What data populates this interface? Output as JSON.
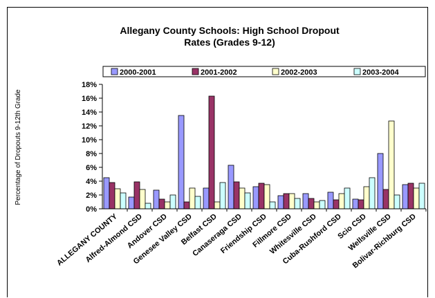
{
  "chart_data": {
    "type": "bar",
    "title_line1": "Allegany County Schools: High School Dropout",
    "title_line2": "Rates (Grades 9-12)",
    "ylabel": "Percentage of Dropouts 9-12th Grade",
    "xlabel": "",
    "ylim": [
      0,
      18
    ],
    "ytick_step": 2,
    "ytick_format": "percent",
    "grid": false,
    "legend_position": "top",
    "categories": [
      "ALLEGANY COUNTY",
      "Alfred-Almond CSD",
      "Andover CSD",
      "Genesee Valley CSD",
      "Belfast CSD",
      "Canaseraga CSD",
      "Friendship CSD",
      "Fillmore CSD",
      "Whitesville CSD",
      "Cuba-Rushford CSD",
      "Scio CSD",
      "Wellsville CSD",
      "Bolivar-Richburg CSD"
    ],
    "series": [
      {
        "name": "2000-2001",
        "color": "#9999ff",
        "values": [
          4.5,
          1.7,
          2.7,
          13.5,
          3.0,
          6.3,
          3.2,
          1.9,
          2.2,
          2.4,
          1.4,
          8.0,
          3.5
        ]
      },
      {
        "name": "2001-2002",
        "color": "#993366",
        "values": [
          3.8,
          3.9,
          1.4,
          1.0,
          16.3,
          3.9,
          3.7,
          2.2,
          1.5,
          1.3,
          1.3,
          2.8,
          3.7
        ]
      },
      {
        "name": "2002-2003",
        "color": "#ffffcc",
        "values": [
          2.9,
          2.8,
          1.0,
          3.0,
          1.0,
          3.0,
          3.5,
          2.2,
          1.0,
          2.2,
          3.2,
          12.7,
          3.0
        ]
      },
      {
        "name": "2003-2004",
        "color": "#ccffff",
        "values": [
          2.3,
          0.8,
          2.0,
          1.8,
          3.8,
          2.3,
          1.0,
          1.5,
          1.2,
          3.0,
          4.5,
          2.0,
          3.7
        ]
      }
    ]
  }
}
